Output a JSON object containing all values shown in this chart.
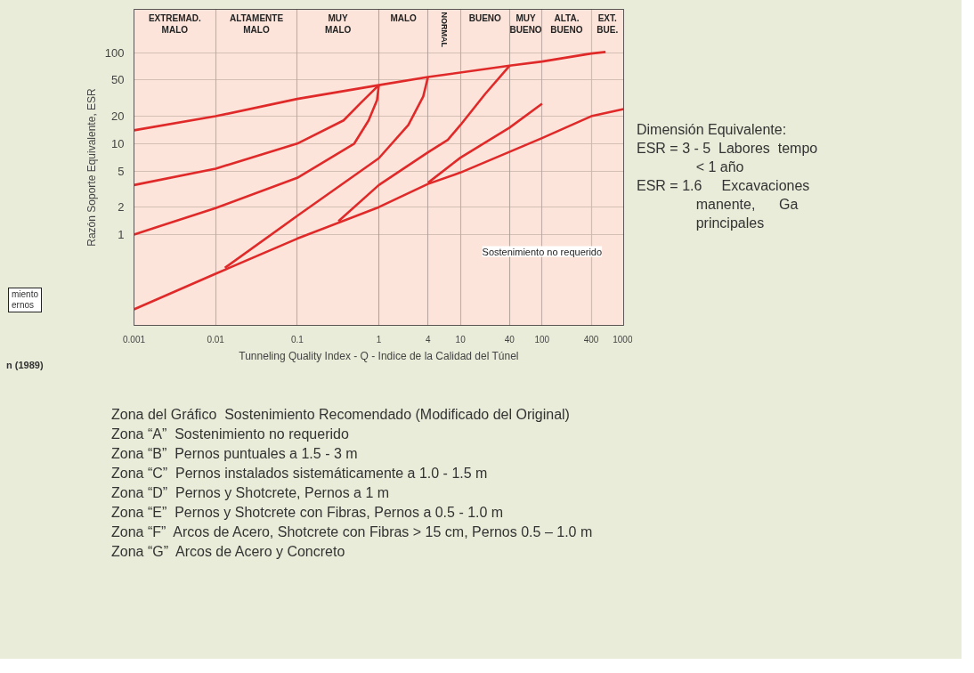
{
  "chart_data": {
    "type": "line",
    "ylabel": "Razón Soporte Equivalente, ESR",
    "xlabel": "Tunneling Quality Index - Q - Indice de la Calidad del Túnel",
    "log": "xy",
    "xlim": [
      0.001,
      1000
    ],
    "ylim": [
      0.1,
      300
    ],
    "xticks": [
      0.001,
      0.01,
      0.1,
      1,
      4,
      10,
      40,
      100,
      400,
      1000
    ],
    "yticks": [
      1,
      2,
      5,
      10,
      20,
      50,
      100
    ],
    "grid": true,
    "marker": "none",
    "line_style": "solid",
    "series": [
      {
        "color": "#e02a2a",
        "x": [
          0.001,
          0.01,
          0.1,
          1,
          4,
          40,
          100,
          400,
          600
        ],
        "values": [
          14,
          20,
          31,
          44,
          54,
          72,
          80,
          98,
          102
        ]
      },
      {
        "color": "#e02a2a",
        "x": [
          0.001,
          0.01,
          0.1,
          0.37,
          0.6,
          1
        ],
        "values": [
          3.5,
          5.3,
          10,
          18,
          28,
          44
        ]
      },
      {
        "color": "#e02a2a",
        "x": [
          0.001,
          0.01,
          0.1,
          0.5,
          0.75,
          0.95,
          1
        ],
        "values": [
          1,
          1.95,
          4.2,
          10,
          18,
          30,
          44
        ]
      },
      {
        "color": "#e02a2a",
        "x": [
          0.013,
          0.1,
          1,
          2.3,
          3.5,
          4
        ],
        "values": [
          0.43,
          1.6,
          6.9,
          16,
          33,
          54
        ]
      },
      {
        "color": "#e02a2a",
        "x": [
          0.32,
          1,
          4,
          7,
          10,
          20,
          40
        ],
        "values": [
          1.4,
          3.5,
          8,
          11,
          16,
          35,
          72
        ]
      },
      {
        "color": "#e02a2a",
        "x": [
          4,
          10,
          40,
          100
        ],
        "values": [
          3.7,
          7,
          15,
          27.5
        ]
      },
      {
        "color": "#e02a2a",
        "x": [
          0.001,
          0.01,
          0.1,
          1,
          4,
          10,
          100,
          400,
          1000
        ],
        "values": [
          0.15,
          0.37,
          0.9,
          2,
          3.6,
          4.8,
          11.5,
          20,
          24
        ]
      }
    ],
    "bands": [
      {
        "axis": "x",
        "from": 0.001,
        "to": 0.01,
        "label": "EXTREMAD. MALO",
        "color": "#fbe1d6"
      },
      {
        "axis": "x",
        "from": 0.01,
        "to": 0.1,
        "label": "ALTAMENTE MALO",
        "color": "#fbe1d6"
      },
      {
        "axis": "x",
        "from": 0.1,
        "to": 1,
        "label": "MUY MALO",
        "color": "#fbe1d6"
      },
      {
        "axis": "x",
        "from": 1,
        "to": 4,
        "label": "MALO",
        "color": "#fbe1d6"
      },
      {
        "axis": "x",
        "from": 4,
        "to": 10,
        "label": "NORMAL",
        "color": "#fbe1d6"
      },
      {
        "axis": "x",
        "from": 10,
        "to": 40,
        "label": "BUENO",
        "color": "#fbe1d6"
      },
      {
        "axis": "x",
        "from": 40,
        "to": 100,
        "label": "MUY BUENO",
        "color": "#fbe1d6"
      },
      {
        "axis": "x",
        "from": 100,
        "to": 400,
        "label": "ALTA. BUENO",
        "color": "#fbe1d6"
      },
      {
        "axis": "x",
        "from": 400,
        "to": 1000,
        "label": "EXT. BUE.",
        "color": "#fbe1d6"
      }
    ],
    "annotations": [
      {
        "text": "Sostenimiento no requerido",
        "x": 100,
        "y": 0.65
      },
      "miento",
      "ernos",
      "n (1989)",
      "Dimensión Equivalente:",
      "ESR = 3 - 5  Labores  tempo",
      "               < 1 año",
      "ESR = 1.6     Excavaciones",
      "               manente,      Ga",
      "               principales",
      "Zona del Gráfico  Sostenimiento Recomendado (Modificado del Original)",
      "Zona “A”  Sostenimiento no requerido",
      "Zona “B”  Pernos puntuales a 1.5 - 3 m",
      "Zona “C”  Pernos instalados sistemáticamente a 1.0 - 1.5 m",
      "Zona “D”  Pernos y Shotcrete, Pernos a 1 m",
      "Zona “E”  Pernos y Shotcrete con Fibras, Pernos a 0.5 - 1.0 m",
      "Zona “F”  Arcos de Acero, Shotcrete con Fibras > 15 cm, Pernos 0.5 – 1.0 m",
      "Zona “G”  Arcos de Acero y Concreto"
    ]
  }
}
